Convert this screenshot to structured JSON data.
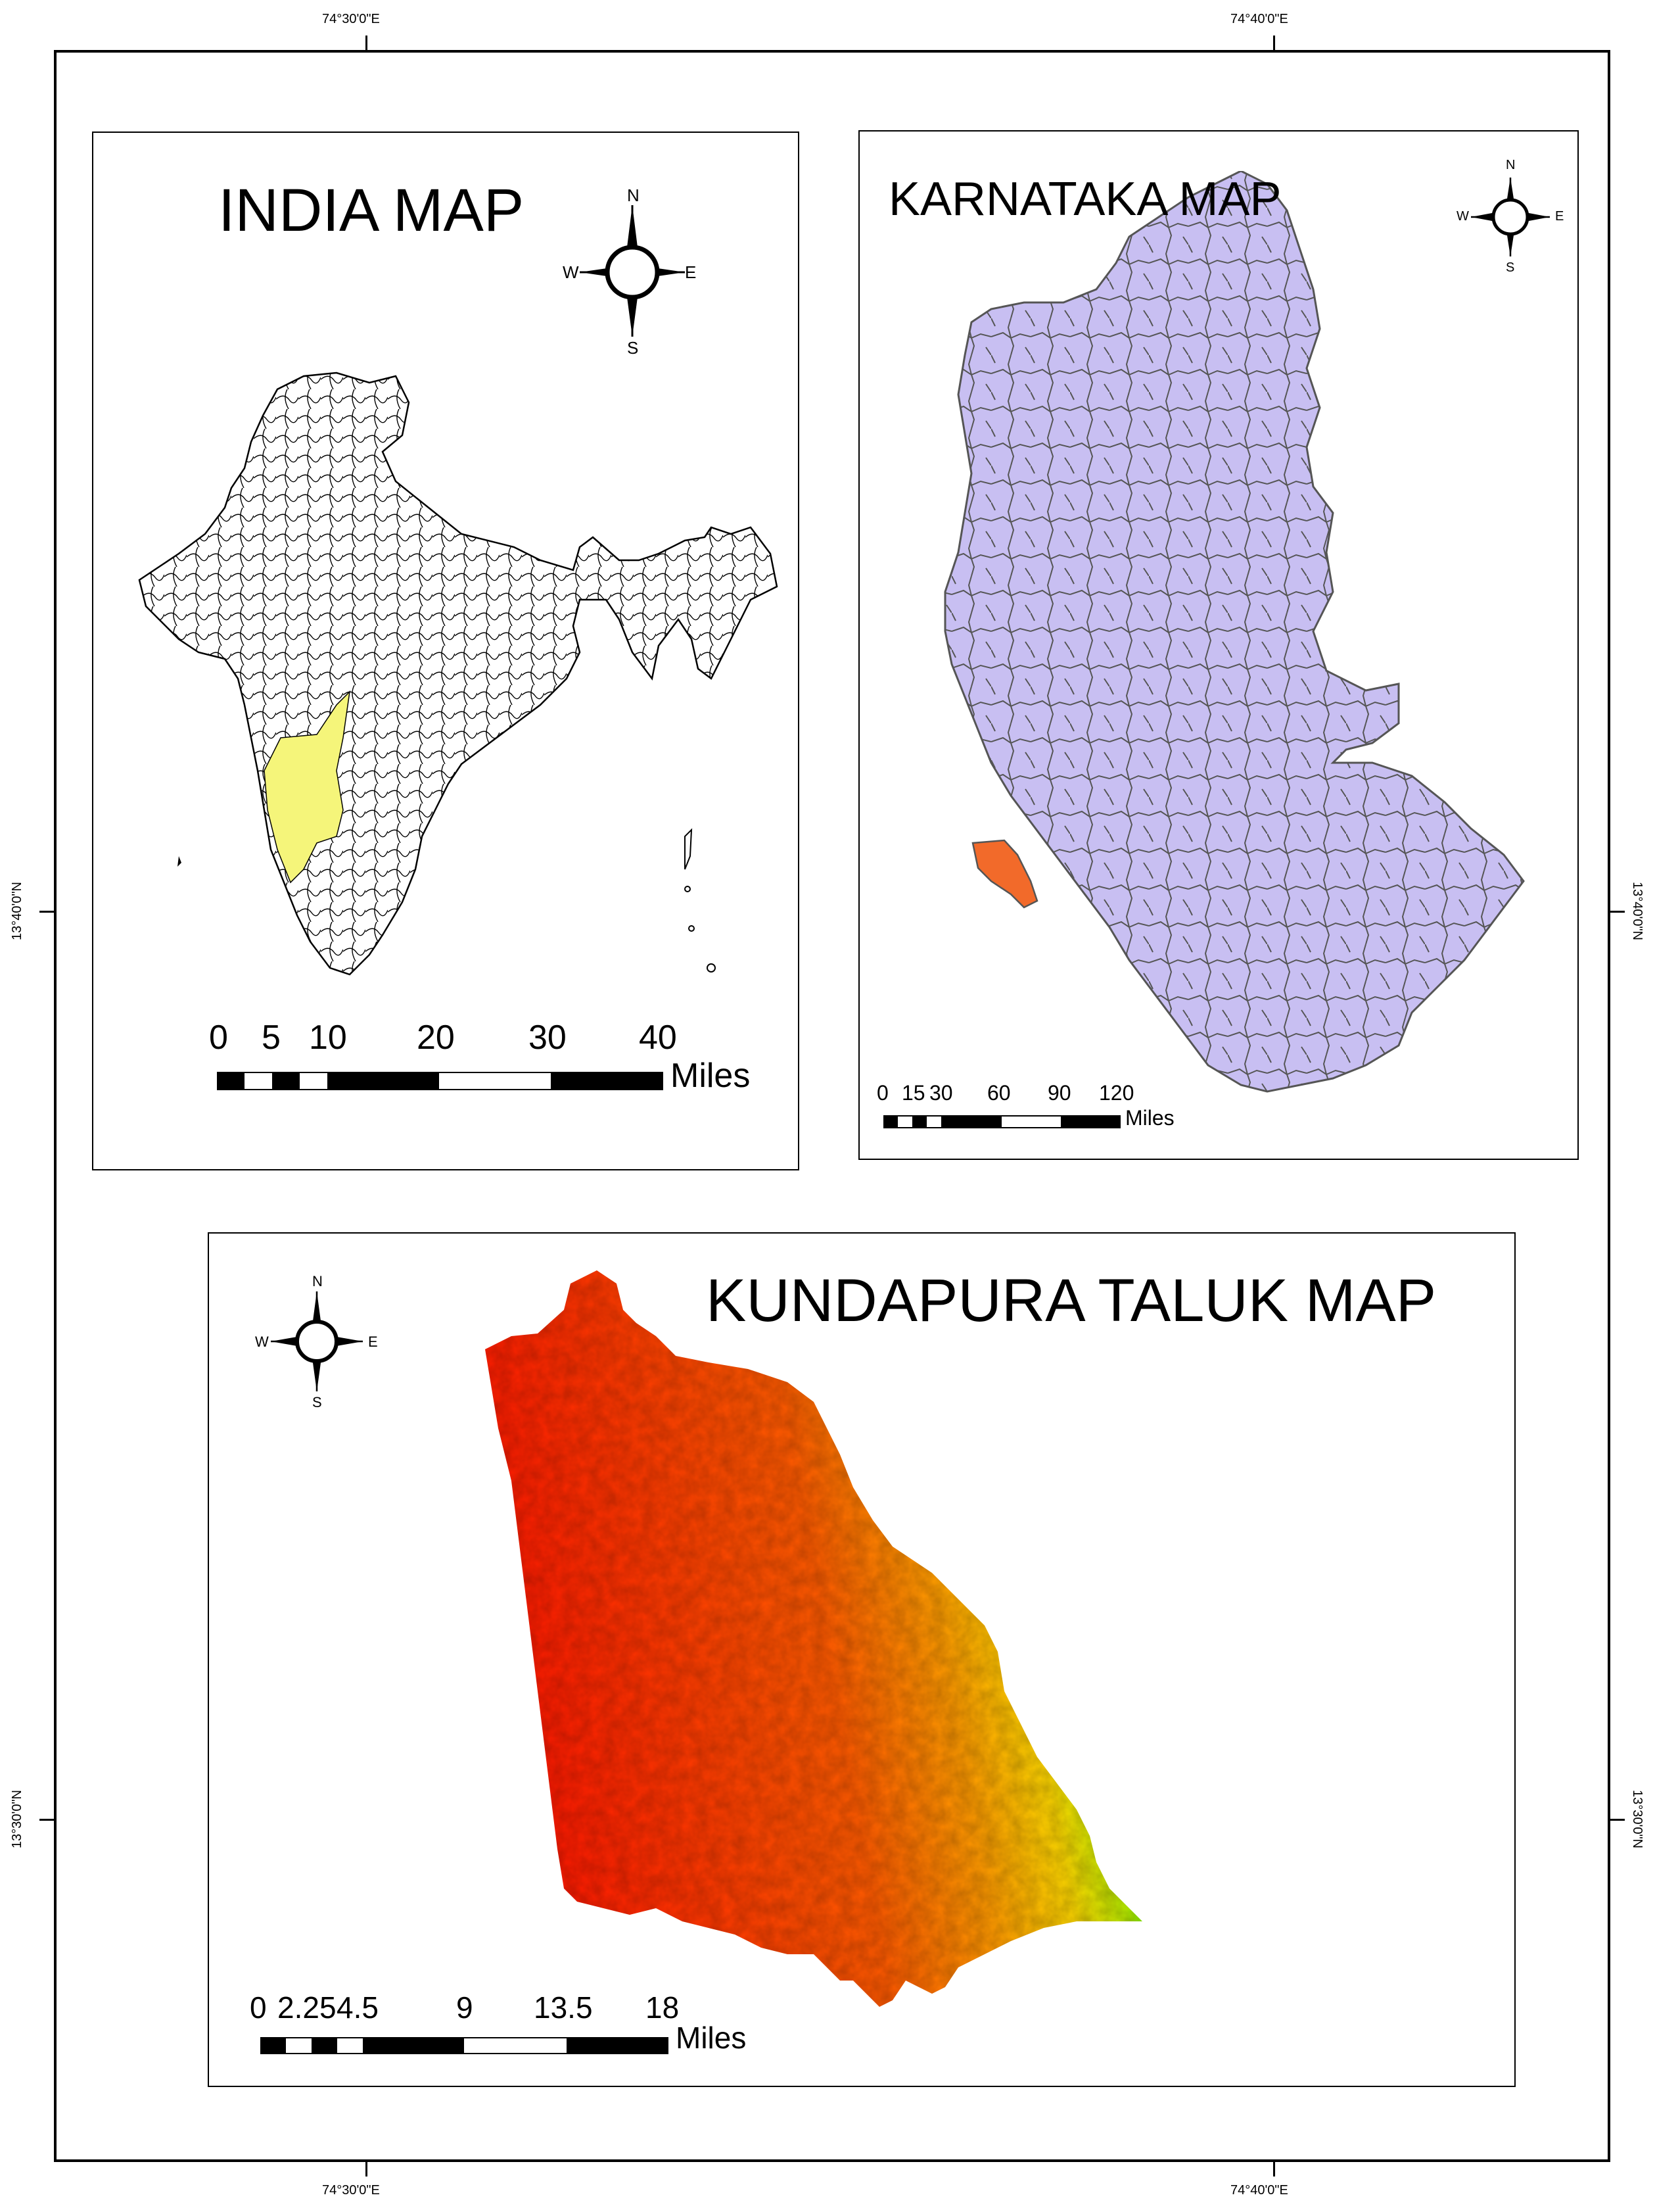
{
  "graticule": {
    "lon_left": "74°30'0\"E",
    "lon_right": "74°40'0\"E",
    "lat_top": "13°40'0\"N",
    "lat_bottom": "13°30'0\"N"
  },
  "india_map": {
    "title": "INDIA MAP",
    "north_arrow": {
      "n": "N",
      "s": "S",
      "e": "E",
      "w": "W"
    },
    "scale_labels": [
      "0",
      "5",
      "10",
      "20",
      "30",
      "40"
    ],
    "scale_unit": "Miles",
    "highlight_color": "#f5f57a"
  },
  "karnataka_map": {
    "title": "KARNATAKA MAP",
    "north_arrow": {
      "n": "N",
      "s": "S",
      "e": "E",
      "w": "W"
    },
    "scale_labels": [
      "0",
      "15",
      "30",
      "60",
      "90",
      "120"
    ],
    "scale_unit": "Miles",
    "fill_color": "#c8bff2",
    "highlight_color": "#f26a2a"
  },
  "kundapura_map": {
    "title": "KUNDAPURA TALUK MAP",
    "north_arrow": {
      "n": "N",
      "s": "S",
      "e": "E",
      "w": "W"
    },
    "scale_labels": [
      "0",
      "2.25",
      "4.5",
      "9",
      "13.5",
      "18"
    ],
    "scale_unit": "Miles",
    "color_ramp": [
      "#ff1a00",
      "#ff8a00",
      "#ffd700",
      "#00ee00"
    ]
  }
}
